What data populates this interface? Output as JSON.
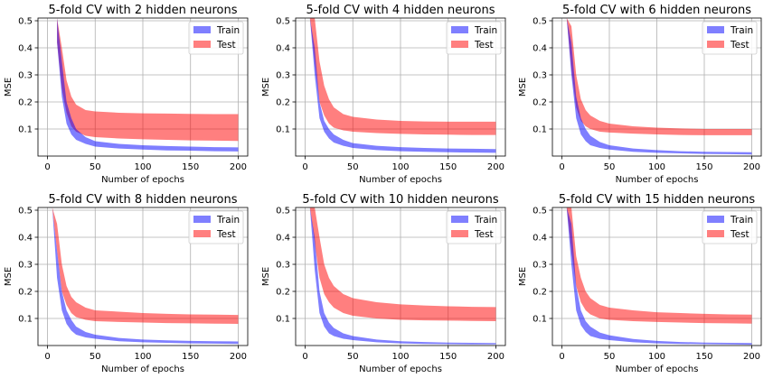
{
  "chart_data": [
    {
      "type": "area",
      "title": "5-fold CV with 2 hidden neurons",
      "xlabel": "Number of epochs",
      "ylabel": "MSE",
      "xlim": [
        -10,
        210
      ],
      "ylim": [
        0,
        0.51
      ],
      "xticks": [
        0,
        50,
        100,
        150,
        200
      ],
      "yticks": [
        0.1,
        0.2,
        0.3,
        0.4,
        0.5
      ],
      "grid": true,
      "legend": "top-right",
      "x": [
        10,
        15,
        20,
        25,
        30,
        40,
        50,
        75,
        100,
        125,
        150,
        175,
        200
      ],
      "series": [
        {
          "name": "Train",
          "color": "#0000ff",
          "lower": [
            0.42,
            0.22,
            0.12,
            0.08,
            0.06,
            0.045,
            0.035,
            0.028,
            0.024,
            0.021,
            0.02,
            0.018,
            0.017
          ],
          "upper": [
            0.51,
            0.35,
            0.2,
            0.14,
            0.1,
            0.07,
            0.055,
            0.045,
            0.04,
            0.037,
            0.035,
            0.033,
            0.032
          ]
        },
        {
          "name": "Test",
          "color": "#ff0000",
          "lower": [
            0.42,
            0.25,
            0.16,
            0.11,
            0.09,
            0.075,
            0.07,
            0.065,
            0.062,
            0.06,
            0.058,
            0.057,
            0.056
          ],
          "upper": [
            0.51,
            0.4,
            0.28,
            0.22,
            0.19,
            0.17,
            0.165,
            0.16,
            0.158,
            0.157,
            0.156,
            0.155,
            0.155
          ]
        }
      ]
    },
    {
      "type": "area",
      "title": "5-fold CV with 4 hidden neurons",
      "xlabel": "Number of epochs",
      "ylabel": "MSE",
      "xlim": [
        -10,
        210
      ],
      "ylim": [
        0,
        0.51
      ],
      "xticks": [
        0,
        50,
        100,
        150,
        200
      ],
      "yticks": [
        0.1,
        0.2,
        0.3,
        0.4,
        0.5
      ],
      "grid": true,
      "legend": "top-right",
      "x": [
        5,
        10,
        15,
        20,
        25,
        30,
        40,
        50,
        75,
        100,
        125,
        150,
        175,
        200
      ],
      "series": [
        {
          "name": "Train",
          "color": "#0000ff",
          "lower": [
            0.51,
            0.3,
            0.14,
            0.09,
            0.065,
            0.05,
            0.038,
            0.03,
            0.022,
            0.018,
            0.016,
            0.014,
            0.013,
            0.012
          ],
          "upper": [
            0.51,
            0.4,
            0.2,
            0.13,
            0.1,
            0.08,
            0.06,
            0.048,
            0.038,
            0.033,
            0.03,
            0.028,
            0.027,
            0.026
          ]
        },
        {
          "name": "Test",
          "color": "#ff0000",
          "lower": [
            0.51,
            0.35,
            0.2,
            0.15,
            0.12,
            0.105,
            0.095,
            0.09,
            0.085,
            0.082,
            0.08,
            0.079,
            0.078,
            0.078
          ],
          "upper": [
            0.51,
            0.51,
            0.35,
            0.26,
            0.21,
            0.18,
            0.155,
            0.145,
            0.135,
            0.13,
            0.128,
            0.127,
            0.127,
            0.127
          ]
        }
      ]
    },
    {
      "type": "area",
      "title": "5-fold CV with 6 hidden neurons",
      "xlabel": "Number of epochs",
      "ylabel": "MSE",
      "xlim": [
        -10,
        210
      ],
      "ylim": [
        0,
        0.51
      ],
      "xticks": [
        0,
        50,
        100,
        150,
        200
      ],
      "yticks": [
        0.1,
        0.2,
        0.3,
        0.4,
        0.5
      ],
      "grid": true,
      "legend": "top-right",
      "x": [
        5,
        10,
        15,
        20,
        25,
        30,
        40,
        50,
        75,
        100,
        125,
        150,
        175,
        200
      ],
      "series": [
        {
          "name": "Train",
          "color": "#0000ff",
          "lower": [
            0.51,
            0.3,
            0.14,
            0.08,
            0.055,
            0.04,
            0.03,
            0.024,
            0.016,
            0.012,
            0.01,
            0.008,
            0.007,
            0.006
          ],
          "upper": [
            0.51,
            0.42,
            0.22,
            0.14,
            0.1,
            0.075,
            0.052,
            0.04,
            0.028,
            0.022,
            0.018,
            0.016,
            0.015,
            0.014
          ]
        },
        {
          "name": "Test",
          "color": "#ff0000",
          "lower": [
            0.51,
            0.32,
            0.18,
            0.13,
            0.11,
            0.1,
            0.09,
            0.087,
            0.083,
            0.08,
            0.078,
            0.077,
            0.077,
            0.077
          ],
          "upper": [
            0.51,
            0.48,
            0.3,
            0.21,
            0.17,
            0.15,
            0.13,
            0.12,
            0.11,
            0.105,
            0.102,
            0.1,
            0.1,
            0.1
          ]
        }
      ]
    },
    {
      "type": "area",
      "title": "5-fold CV with 8 hidden neurons",
      "xlabel": "Number of epochs",
      "ylabel": "MSE",
      "xlim": [
        -10,
        210
      ],
      "ylim": [
        0,
        0.51
      ],
      "xticks": [
        0,
        50,
        100,
        150,
        200
      ],
      "yticks": [
        0.1,
        0.2,
        0.3,
        0.4,
        0.5
      ],
      "grid": true,
      "legend": "top-right",
      "x": [
        5,
        10,
        15,
        20,
        25,
        30,
        40,
        50,
        75,
        100,
        125,
        150,
        175,
        200
      ],
      "series": [
        {
          "name": "Train",
          "color": "#0000ff",
          "lower": [
            0.51,
            0.25,
            0.13,
            0.08,
            0.055,
            0.04,
            0.03,
            0.025,
            0.016,
            0.012,
            0.01,
            0.008,
            0.007,
            0.006
          ],
          "upper": [
            0.51,
            0.35,
            0.2,
            0.13,
            0.095,
            0.07,
            0.05,
            0.04,
            0.028,
            0.022,
            0.019,
            0.017,
            0.016,
            0.015
          ]
        },
        {
          "name": "Test",
          "color": "#ff0000",
          "lower": [
            0.51,
            0.35,
            0.2,
            0.15,
            0.12,
            0.105,
            0.095,
            0.09,
            0.087,
            0.085,
            0.083,
            0.082,
            0.081,
            0.08
          ],
          "upper": [
            0.51,
            0.45,
            0.3,
            0.22,
            0.18,
            0.16,
            0.14,
            0.13,
            0.125,
            0.12,
            0.117,
            0.115,
            0.114,
            0.113
          ]
        }
      ]
    },
    {
      "type": "area",
      "title": "5-fold CV with 10 hidden neurons",
      "xlabel": "Number of epochs",
      "ylabel": "MSE",
      "xlim": [
        -10,
        210
      ],
      "ylim": [
        0,
        0.51
      ],
      "xticks": [
        0,
        50,
        100,
        150,
        200
      ],
      "yticks": [
        0.1,
        0.2,
        0.3,
        0.4,
        0.5
      ],
      "grid": true,
      "legend": "top-right",
      "x": [
        5,
        10,
        15,
        20,
        25,
        30,
        40,
        50,
        75,
        100,
        125,
        150,
        175,
        200
      ],
      "series": [
        {
          "name": "Train",
          "color": "#0000ff",
          "lower": [
            0.51,
            0.28,
            0.12,
            0.07,
            0.045,
            0.035,
            0.025,
            0.02,
            0.012,
            0.008,
            0.006,
            0.005,
            0.004,
            0.004
          ],
          "upper": [
            0.51,
            0.4,
            0.2,
            0.12,
            0.085,
            0.065,
            0.045,
            0.035,
            0.022,
            0.016,
            0.013,
            0.011,
            0.01,
            0.009
          ]
        },
        {
          "name": "Test",
          "color": "#ff0000",
          "lower": [
            0.51,
            0.38,
            0.25,
            0.19,
            0.16,
            0.14,
            0.12,
            0.11,
            0.1,
            0.095,
            0.093,
            0.092,
            0.091,
            0.09
          ],
          "upper": [
            0.51,
            0.51,
            0.4,
            0.3,
            0.25,
            0.22,
            0.19,
            0.175,
            0.16,
            0.152,
            0.148,
            0.145,
            0.143,
            0.142
          ]
        }
      ]
    },
    {
      "type": "area",
      "title": "5-fold CV with 15 hidden neurons",
      "xlabel": "Number of epochs",
      "ylabel": "MSE",
      "xlim": [
        -10,
        210
      ],
      "ylim": [
        0,
        0.51
      ],
      "xticks": [
        0,
        50,
        100,
        150,
        200
      ],
      "yticks": [
        0.1,
        0.2,
        0.3,
        0.4,
        0.5
      ],
      "grid": true,
      "legend": "top-right",
      "x": [
        5,
        10,
        15,
        20,
        25,
        30,
        40,
        50,
        75,
        100,
        125,
        150,
        175,
        200
      ],
      "series": [
        {
          "name": "Train",
          "color": "#0000ff",
          "lower": [
            0.51,
            0.3,
            0.13,
            0.075,
            0.05,
            0.035,
            0.025,
            0.02,
            0.012,
            0.008,
            0.006,
            0.005,
            0.004,
            0.003
          ],
          "upper": [
            0.51,
            0.45,
            0.22,
            0.13,
            0.09,
            0.07,
            0.048,
            0.038,
            0.024,
            0.017,
            0.013,
            0.011,
            0.01,
            0.009
          ]
        },
        {
          "name": "Test",
          "color": "#ff0000",
          "lower": [
            0.51,
            0.35,
            0.22,
            0.16,
            0.13,
            0.115,
            0.1,
            0.095,
            0.09,
            0.087,
            0.085,
            0.083,
            0.082,
            0.081
          ],
          "upper": [
            0.51,
            0.51,
            0.33,
            0.25,
            0.2,
            0.175,
            0.15,
            0.14,
            0.13,
            0.123,
            0.12,
            0.117,
            0.115,
            0.114
          ]
        }
      ]
    }
  ]
}
